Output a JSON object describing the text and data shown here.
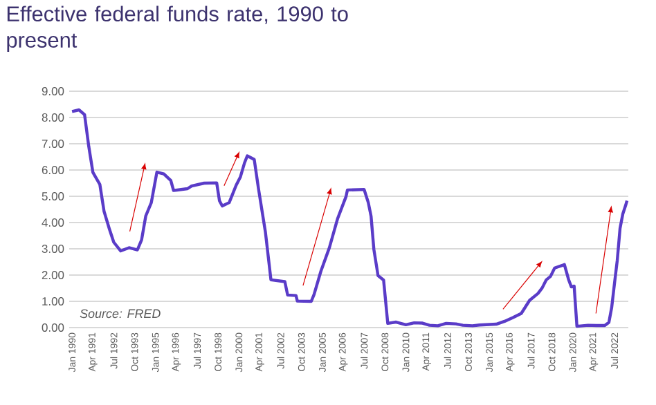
{
  "chart_data": {
    "type": "line",
    "title": "Effective federal funds rate, 1990 to present",
    "annotations": [
      "Source: FRED"
    ],
    "xlim": [
      "1989-11",
      "2023-05"
    ],
    "xticks": [
      {
        "value": "1990-01",
        "label": "Jan 1990"
      },
      {
        "value": "1991-04",
        "label": "Apr 1991"
      },
      {
        "value": "1992-07",
        "label": "Jul 1992"
      },
      {
        "value": "1993-10",
        "label": "Oct 1993"
      },
      {
        "value": "1995-01",
        "label": "Jan 1995"
      },
      {
        "value": "1996-04",
        "label": "Apr 1996"
      },
      {
        "value": "1997-07",
        "label": "Jul 1997"
      },
      {
        "value": "1998-10",
        "label": "Oct 1998"
      },
      {
        "value": "2000-01",
        "label": "Jan 2000"
      },
      {
        "value": "2001-04",
        "label": "Apr 2001"
      },
      {
        "value": "2002-07",
        "label": "Jul 2002"
      },
      {
        "value": "2003-10",
        "label": "Oct 2003"
      },
      {
        "value": "2005-01",
        "label": "Jan 2005"
      },
      {
        "value": "2006-04",
        "label": "Apr 2006"
      },
      {
        "value": "2007-07",
        "label": "Jul 2007"
      },
      {
        "value": "2008-10",
        "label": "Oct 2008"
      },
      {
        "value": "2010-01",
        "label": "Jan 2010"
      },
      {
        "value": "2011-04",
        "label": "Apr 2011"
      },
      {
        "value": "2012-07",
        "label": "Jul 2012"
      },
      {
        "value": "2013-10",
        "label": "Oct 2013"
      },
      {
        "value": "2015-01",
        "label": "Jan 2015"
      },
      {
        "value": "2016-04",
        "label": "Apr 2016"
      },
      {
        "value": "2017-07",
        "label": "Jul 2017"
      },
      {
        "value": "2018-10",
        "label": "Oct 2018"
      },
      {
        "value": "2020-01",
        "label": "Jan 2020"
      },
      {
        "value": "2021-04",
        "label": "Apr 2021"
      },
      {
        "value": "2022-07",
        "label": "Jul 2022"
      }
    ],
    "ylim": [
      0,
      9
    ],
    "yticks": [
      {
        "value": 0,
        "label": "0.00"
      },
      {
        "value": 1,
        "label": "1.00"
      },
      {
        "value": 2,
        "label": "2.00"
      },
      {
        "value": 3,
        "label": "3.00"
      },
      {
        "value": 4,
        "label": "4.00"
      },
      {
        "value": 5,
        "label": "5.00"
      },
      {
        "value": 6,
        "label": "6.00"
      },
      {
        "value": 7,
        "label": "7.00"
      },
      {
        "value": 8,
        "label": "8.00"
      },
      {
        "value": 9,
        "label": "9.00"
      }
    ],
    "grid": "y",
    "series": [
      {
        "color": "#5a3cc8",
        "x": [
          "1990-01",
          "1990-06",
          "1990-10",
          "1991-01",
          "1991-04",
          "1991-09",
          "1991-12",
          "1992-04",
          "1992-07",
          "1992-12",
          "1993-06",
          "1993-12",
          "1994-03",
          "1994-06",
          "1994-10",
          "1995-02",
          "1995-07",
          "1995-12",
          "1996-02",
          "1996-12",
          "1997-03",
          "1997-12",
          "1998-09",
          "1998-11",
          "1999-01",
          "1999-06",
          "1999-11",
          "2000-02",
          "2000-05",
          "2000-07",
          "2000-12",
          "2001-03",
          "2001-08",
          "2001-12",
          "2002-10",
          "2002-12",
          "2003-06",
          "2003-07",
          "2004-05",
          "2004-07",
          "2004-12",
          "2005-06",
          "2005-12",
          "2006-06",
          "2006-07",
          "2007-07",
          "2007-10",
          "2007-12",
          "2008-02",
          "2008-05",
          "2008-09",
          "2008-12",
          "2009-06",
          "2010-01",
          "2010-07",
          "2011-01",
          "2011-06",
          "2011-12",
          "2012-06",
          "2013-01",
          "2013-06",
          "2014-01",
          "2014-06",
          "2015-06",
          "2015-12",
          "2016-06",
          "2016-12",
          "2017-03",
          "2017-06",
          "2017-12",
          "2018-03",
          "2018-06",
          "2018-09",
          "2018-12",
          "2019-06",
          "2019-07",
          "2019-10",
          "2019-12",
          "2020-02",
          "2020-04",
          "2020-12",
          "2021-06",
          "2021-12",
          "2022-03",
          "2022-05",
          "2022-07",
          "2022-09",
          "2022-11",
          "2023-01",
          "2023-03",
          "2023-04"
        ],
        "values": [
          8.23,
          8.29,
          8.11,
          6.91,
          5.91,
          5.45,
          4.43,
          3.73,
          3.25,
          2.92,
          3.04,
          2.96,
          3.34,
          4.25,
          4.76,
          5.92,
          5.85,
          5.6,
          5.22,
          5.29,
          5.39,
          5.5,
          5.51,
          4.83,
          4.63,
          4.76,
          5.42,
          5.73,
          6.27,
          6.54,
          6.4,
          5.31,
          3.65,
          1.82,
          1.75,
          1.24,
          1.22,
          1.01,
          1.0,
          1.26,
          2.16,
          3.04,
          4.16,
          4.99,
          5.24,
          5.26,
          4.76,
          4.24,
          2.98,
          1.98,
          1.81,
          0.16,
          0.21,
          0.11,
          0.18,
          0.17,
          0.09,
          0.07,
          0.16,
          0.14,
          0.09,
          0.07,
          0.1,
          0.13,
          0.24,
          0.38,
          0.54,
          0.79,
          1.04,
          1.3,
          1.51,
          1.82,
          1.95,
          2.27,
          2.38,
          2.4,
          1.83,
          1.55,
          1.58,
          0.05,
          0.09,
          0.08,
          0.08,
          0.2,
          0.77,
          1.68,
          2.56,
          3.78,
          4.33,
          4.65,
          4.83
        ]
      }
    ]
  }
}
